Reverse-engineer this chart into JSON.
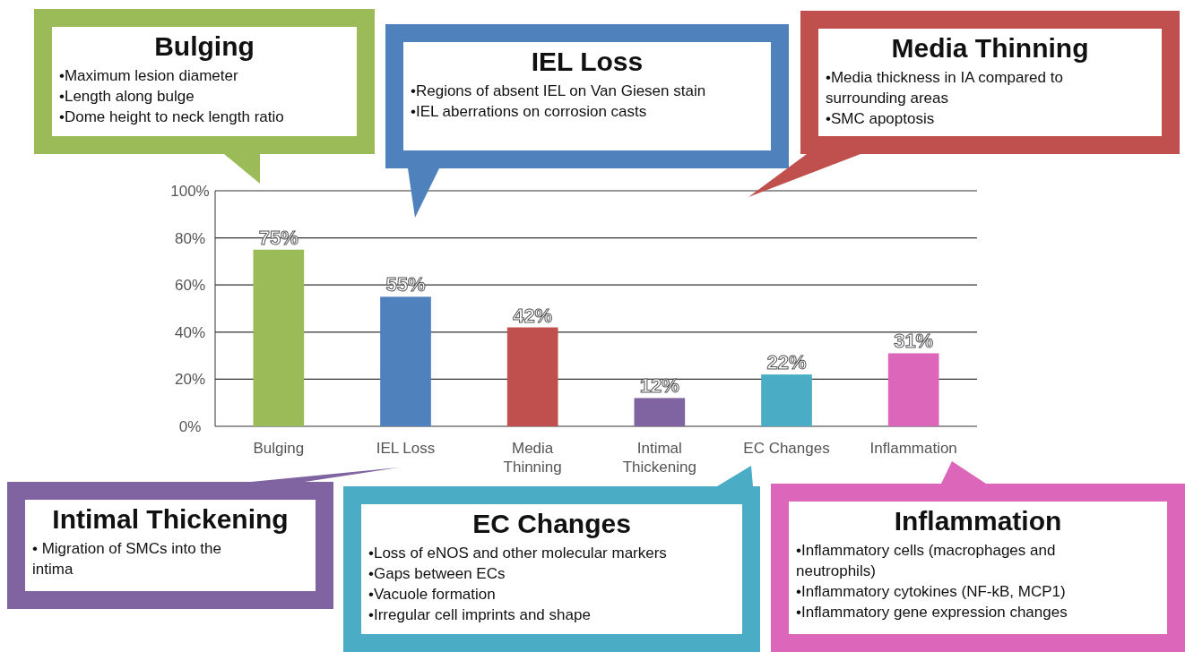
{
  "chart_data": {
    "type": "bar",
    "categories": [
      "Bulging",
      "IEL Loss",
      "Media Thinning",
      "Intimal Thickening",
      "EC Changes",
      "Inflammation"
    ],
    "values": [
      75,
      55,
      42,
      12,
      22,
      31
    ],
    "value_labels": [
      "75%",
      "55%",
      "42%",
      "12%",
      "22%",
      "31%"
    ],
    "colors": [
      "#9bbb59",
      "#4f81bd",
      "#c0504d",
      "#8064a2",
      "#4bacc6",
      "#dc66b9"
    ],
    "ylim": [
      0,
      100
    ],
    "yticks": [
      {
        "value": 0,
        "label": "0%"
      },
      {
        "value": 20,
        "label": "20%"
      },
      {
        "value": 40,
        "label": "40%"
      },
      {
        "value": 60,
        "label": "60%"
      },
      {
        "value": 80,
        "label": "80%"
      },
      {
        "value": 100,
        "label": "100%"
      }
    ],
    "grid": "y",
    "annotations": [
      "Bulging\n•Maximum lesion diameter\n•Length along bulge\n•Dome height to neck length ratio",
      "IEL Loss\n•Regions of absent IEL on Van Giesen stain\n•IEL aberrations on corrosion casts",
      "Media Thinning\n•Media thickness in IA compared to\nsurrounding areas\n•SMC apoptosis",
      "Intimal Thickening\n• Migration of SMCs into the\nintima",
      "EC Changes\n•Loss of eNOS and other molecular markers\n•Gaps between ECs\n•Vacuole formation\n•Irregular cell imprints and shape",
      "Inflammation\n•Inflammatory cells (macrophages and\nneutrophils)\n•Inflammatory cytokines (NF-kB, MCP1)\n•Inflammatory gene expression changes"
    ]
  }
}
